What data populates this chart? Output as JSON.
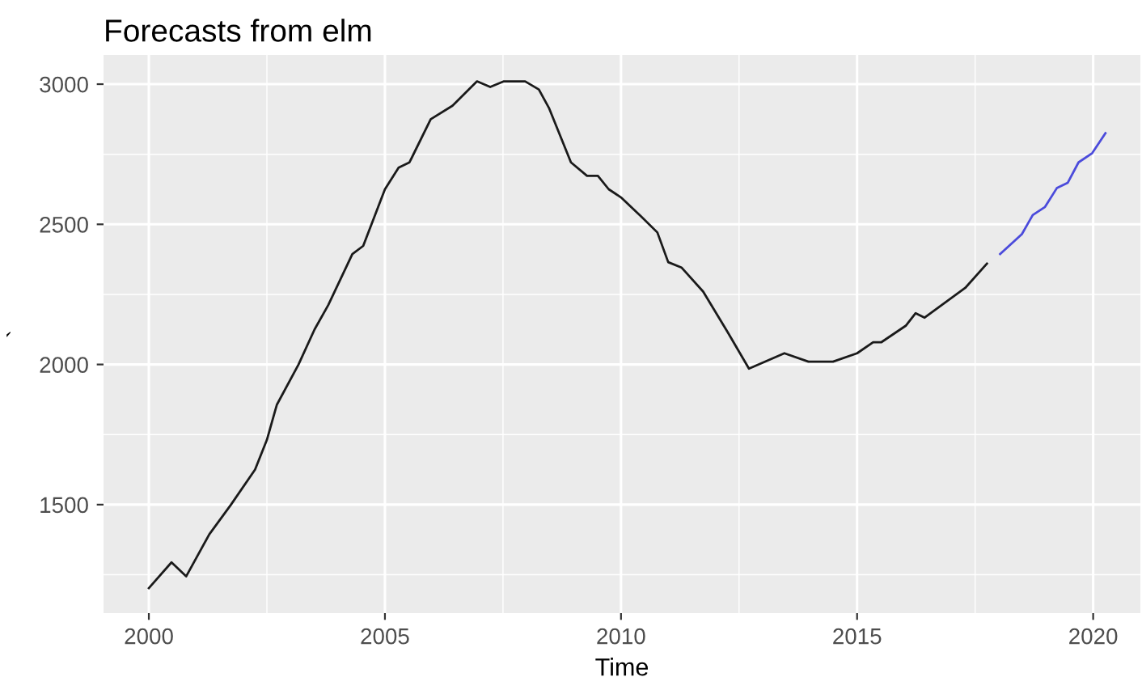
{
  "chart_data": {
    "type": "line",
    "title": "Forecasts from elm",
    "xlabel": "Time",
    "ylabel": "`",
    "xlim": [
      1999.04,
      2021.0
    ],
    "ylim": [
      1113,
      3104
    ],
    "xticks": [
      2000,
      2005,
      2010,
      2015,
      2020
    ],
    "yticks": [
      1500,
      2000,
      2500,
      3000
    ],
    "grid": true,
    "legend": false,
    "series": [
      {
        "color": "#1a1a1a",
        "x": [
          2000.0,
          2000.48,
          2000.79,
          2001.28,
          2001.74,
          2002.25,
          2002.5,
          2002.71,
          2003.17,
          2003.51,
          2003.8,
          2004.31,
          2004.54,
          2005.0,
          2005.29,
          2005.52,
          2005.97,
          2006.43,
          2006.95,
          2007.23,
          2007.52,
          2007.97,
          2008.26,
          2008.48,
          2008.94,
          2009.28,
          2009.51,
          2009.74,
          2010.0,
          2010.42,
          2010.77,
          2011.0,
          2011.28,
          2011.74,
          2012.26,
          2012.71,
          2013.46,
          2013.97,
          2014.49,
          2015.0,
          2015.34,
          2015.51,
          2016.03,
          2016.24,
          2016.43,
          2017.29,
          2017.75
        ],
        "values": [
          1202,
          1294,
          1244,
          1394,
          1500,
          1625,
          1731,
          1856,
          2000,
          2125,
          2212,
          2394,
          2423,
          2625,
          2702,
          2721,
          2875,
          2923,
          3010,
          2990,
          3010,
          3010,
          2981,
          2913,
          2721,
          2673,
          2673,
          2625,
          2596,
          2529,
          2471,
          2365,
          2346,
          2260,
          2115,
          1985,
          2040,
          2010,
          2010,
          2040,
          2079,
          2079,
          2138,
          2183,
          2167,
          2273,
          2360
        ]
      },
      {
        "color": "#4b4bdb",
        "x": [
          2018.03,
          2018.49,
          2018.72,
          2018.98,
          2019.23,
          2019.46,
          2019.69,
          2019.98,
          2020.26
        ],
        "values": [
          2394,
          2465,
          2533,
          2562,
          2629,
          2648,
          2721,
          2754,
          2825
        ]
      }
    ]
  }
}
